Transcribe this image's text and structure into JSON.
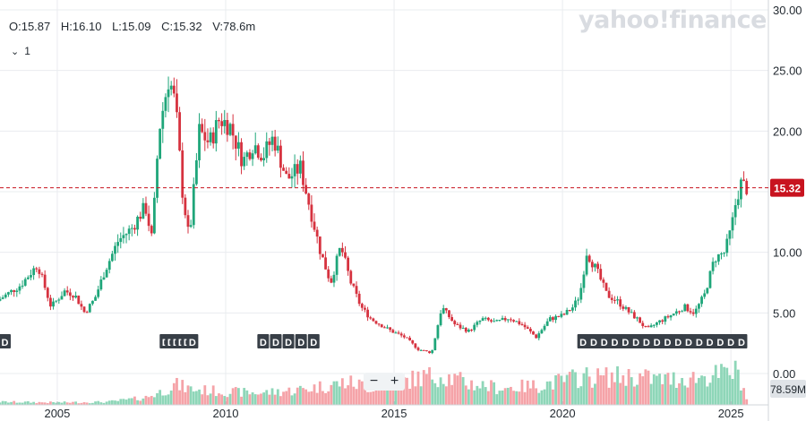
{
  "ohlc": {
    "open": "O:15.87",
    "high": "H:16.10",
    "low": "L:15.09",
    "close": "C:15.32",
    "volume": "V:78.6m"
  },
  "interval_label": "1",
  "logo_text": "yahoo!finance",
  "zoom": {
    "minus": "−",
    "plus": "+"
  },
  "colors": {
    "up": "#1fa67a",
    "down": "#d6323f",
    "vol_up": "#8ed6b8",
    "vol_down": "#f5a3a8",
    "last_price": "#c8131f",
    "dividend_marker": "#383f47",
    "grid": "#eaecef",
    "axis_text": "#232a31"
  },
  "chart_data": {
    "type": "candlestick",
    "y_axis": {
      "ticks": [
        "30.00",
        "25.00",
        "20.00",
        "15.00",
        "10.00",
        "5.00",
        "0.00"
      ],
      "min": 0,
      "max": 30,
      "position": "right"
    },
    "x_axis": {
      "ticks": [
        "2005",
        "2010",
        "2015",
        "2020",
        "2025"
      ],
      "range": [
        2003.3,
        2025.9
      ]
    },
    "last_price": {
      "value": 15.32,
      "label": "15.32"
    },
    "last_volume": {
      "value": 78.59,
      "label": "78.59M"
    },
    "dividend_marker_label": "D",
    "dividend_groups": [
      {
        "count": 6,
        "start": 2008.2,
        "end": 2009.0
      },
      {
        "count": 5,
        "start": 2011.1,
        "end": 2012.6
      },
      {
        "count": 1,
        "start": 2003.3,
        "end": 2003.3
      },
      {
        "count": 16,
        "start": 2020.6,
        "end": 2025.3
      }
    ],
    "price_path": [
      [
        2003.3,
        6.0
      ],
      [
        2004.0,
        7.3
      ],
      [
        2004.5,
        9.0
      ],
      [
        2004.9,
        5.5
      ],
      [
        2005.3,
        6.8
      ],
      [
        2005.6,
        6.5
      ],
      [
        2005.9,
        5.0
      ],
      [
        2006.2,
        6.2
      ],
      [
        2006.5,
        8.5
      ],
      [
        2006.9,
        11.0
      ],
      [
        2007.3,
        12.0
      ],
      [
        2007.7,
        13.8
      ],
      [
        2007.9,
        11.0
      ],
      [
        2008.1,
        20.0
      ],
      [
        2008.4,
        24.5
      ],
      [
        2008.6,
        22.0
      ],
      [
        2008.8,
        15.0
      ],
      [
        2009.0,
        11.0
      ],
      [
        2009.3,
        20.0
      ],
      [
        2009.6,
        19.0
      ],
      [
        2009.9,
        21.0
      ],
      [
        2010.2,
        20.5
      ],
      [
        2010.6,
        17.5
      ],
      [
        2010.9,
        19.0
      ],
      [
        2011.2,
        18.0
      ],
      [
        2011.5,
        19.5
      ],
      [
        2011.9,
        16.0
      ],
      [
        2012.3,
        17.0
      ],
      [
        2012.6,
        13.5
      ],
      [
        2012.9,
        10.0
      ],
      [
        2013.2,
        7.5
      ],
      [
        2013.5,
        10.5
      ],
      [
        2013.8,
        7.5
      ],
      [
        2014.1,
        5.5
      ],
      [
        2014.4,
        4.5
      ],
      [
        2014.7,
        4.0
      ],
      [
        2015.0,
        3.5
      ],
      [
        2015.4,
        3.0
      ],
      [
        2015.8,
        2.0
      ],
      [
        2016.2,
        1.7
      ],
      [
        2016.5,
        5.5
      ],
      [
        2016.9,
        4.0
      ],
      [
        2017.3,
        3.5
      ],
      [
        2017.7,
        4.5
      ],
      [
        2018.1,
        4.2
      ],
      [
        2018.5,
        4.6
      ],
      [
        2018.9,
        4.0
      ],
      [
        2019.3,
        3.0
      ],
      [
        2019.7,
        4.5
      ],
      [
        2020.1,
        4.8
      ],
      [
        2020.4,
        5.5
      ],
      [
        2020.6,
        6.5
      ],
      [
        2020.8,
        10.0
      ],
      [
        2021.1,
        8.5
      ],
      [
        2021.4,
        6.5
      ],
      [
        2021.7,
        6.0
      ],
      [
        2022.0,
        5.2
      ],
      [
        2022.3,
        4.5
      ],
      [
        2022.6,
        3.6
      ],
      [
        2022.9,
        4.2
      ],
      [
        2023.3,
        4.8
      ],
      [
        2023.7,
        5.5
      ],
      [
        2024.0,
        5.0
      ],
      [
        2024.3,
        6.5
      ],
      [
        2024.6,
        9.5
      ],
      [
        2024.9,
        10.0
      ],
      [
        2025.1,
        12.0
      ],
      [
        2025.25,
        14.5
      ],
      [
        2025.4,
        15.8
      ],
      [
        2025.5,
        15.32
      ]
    ],
    "volume_profile": {
      "max_millions": 450,
      "path": [
        [
          2003.3,
          25
        ],
        [
          2005.0,
          20
        ],
        [
          2006.5,
          25
        ],
        [
          2007.6,
          60
        ],
        [
          2008.1,
          110
        ],
        [
          2008.5,
          170
        ],
        [
          2009.0,
          130
        ],
        [
          2010.0,
          110
        ],
        [
          2011.0,
          100
        ],
        [
          2012.0,
          120
        ],
        [
          2013.0,
          160
        ],
        [
          2013.6,
          190
        ],
        [
          2014.3,
          150
        ],
        [
          2015.0,
          180
        ],
        [
          2015.8,
          230
        ],
        [
          2016.4,
          250
        ],
        [
          2017.2,
          180
        ],
        [
          2018.2,
          140
        ],
        [
          2019.2,
          160
        ],
        [
          2020.0,
          200
        ],
        [
          2020.6,
          240
        ],
        [
          2021.0,
          230
        ],
        [
          2022.0,
          240
        ],
        [
          2023.0,
          210
        ],
        [
          2024.0,
          230
        ],
        [
          2024.6,
          250
        ],
        [
          2025.2,
          280
        ],
        [
          2025.5,
          30
        ]
      ]
    }
  }
}
